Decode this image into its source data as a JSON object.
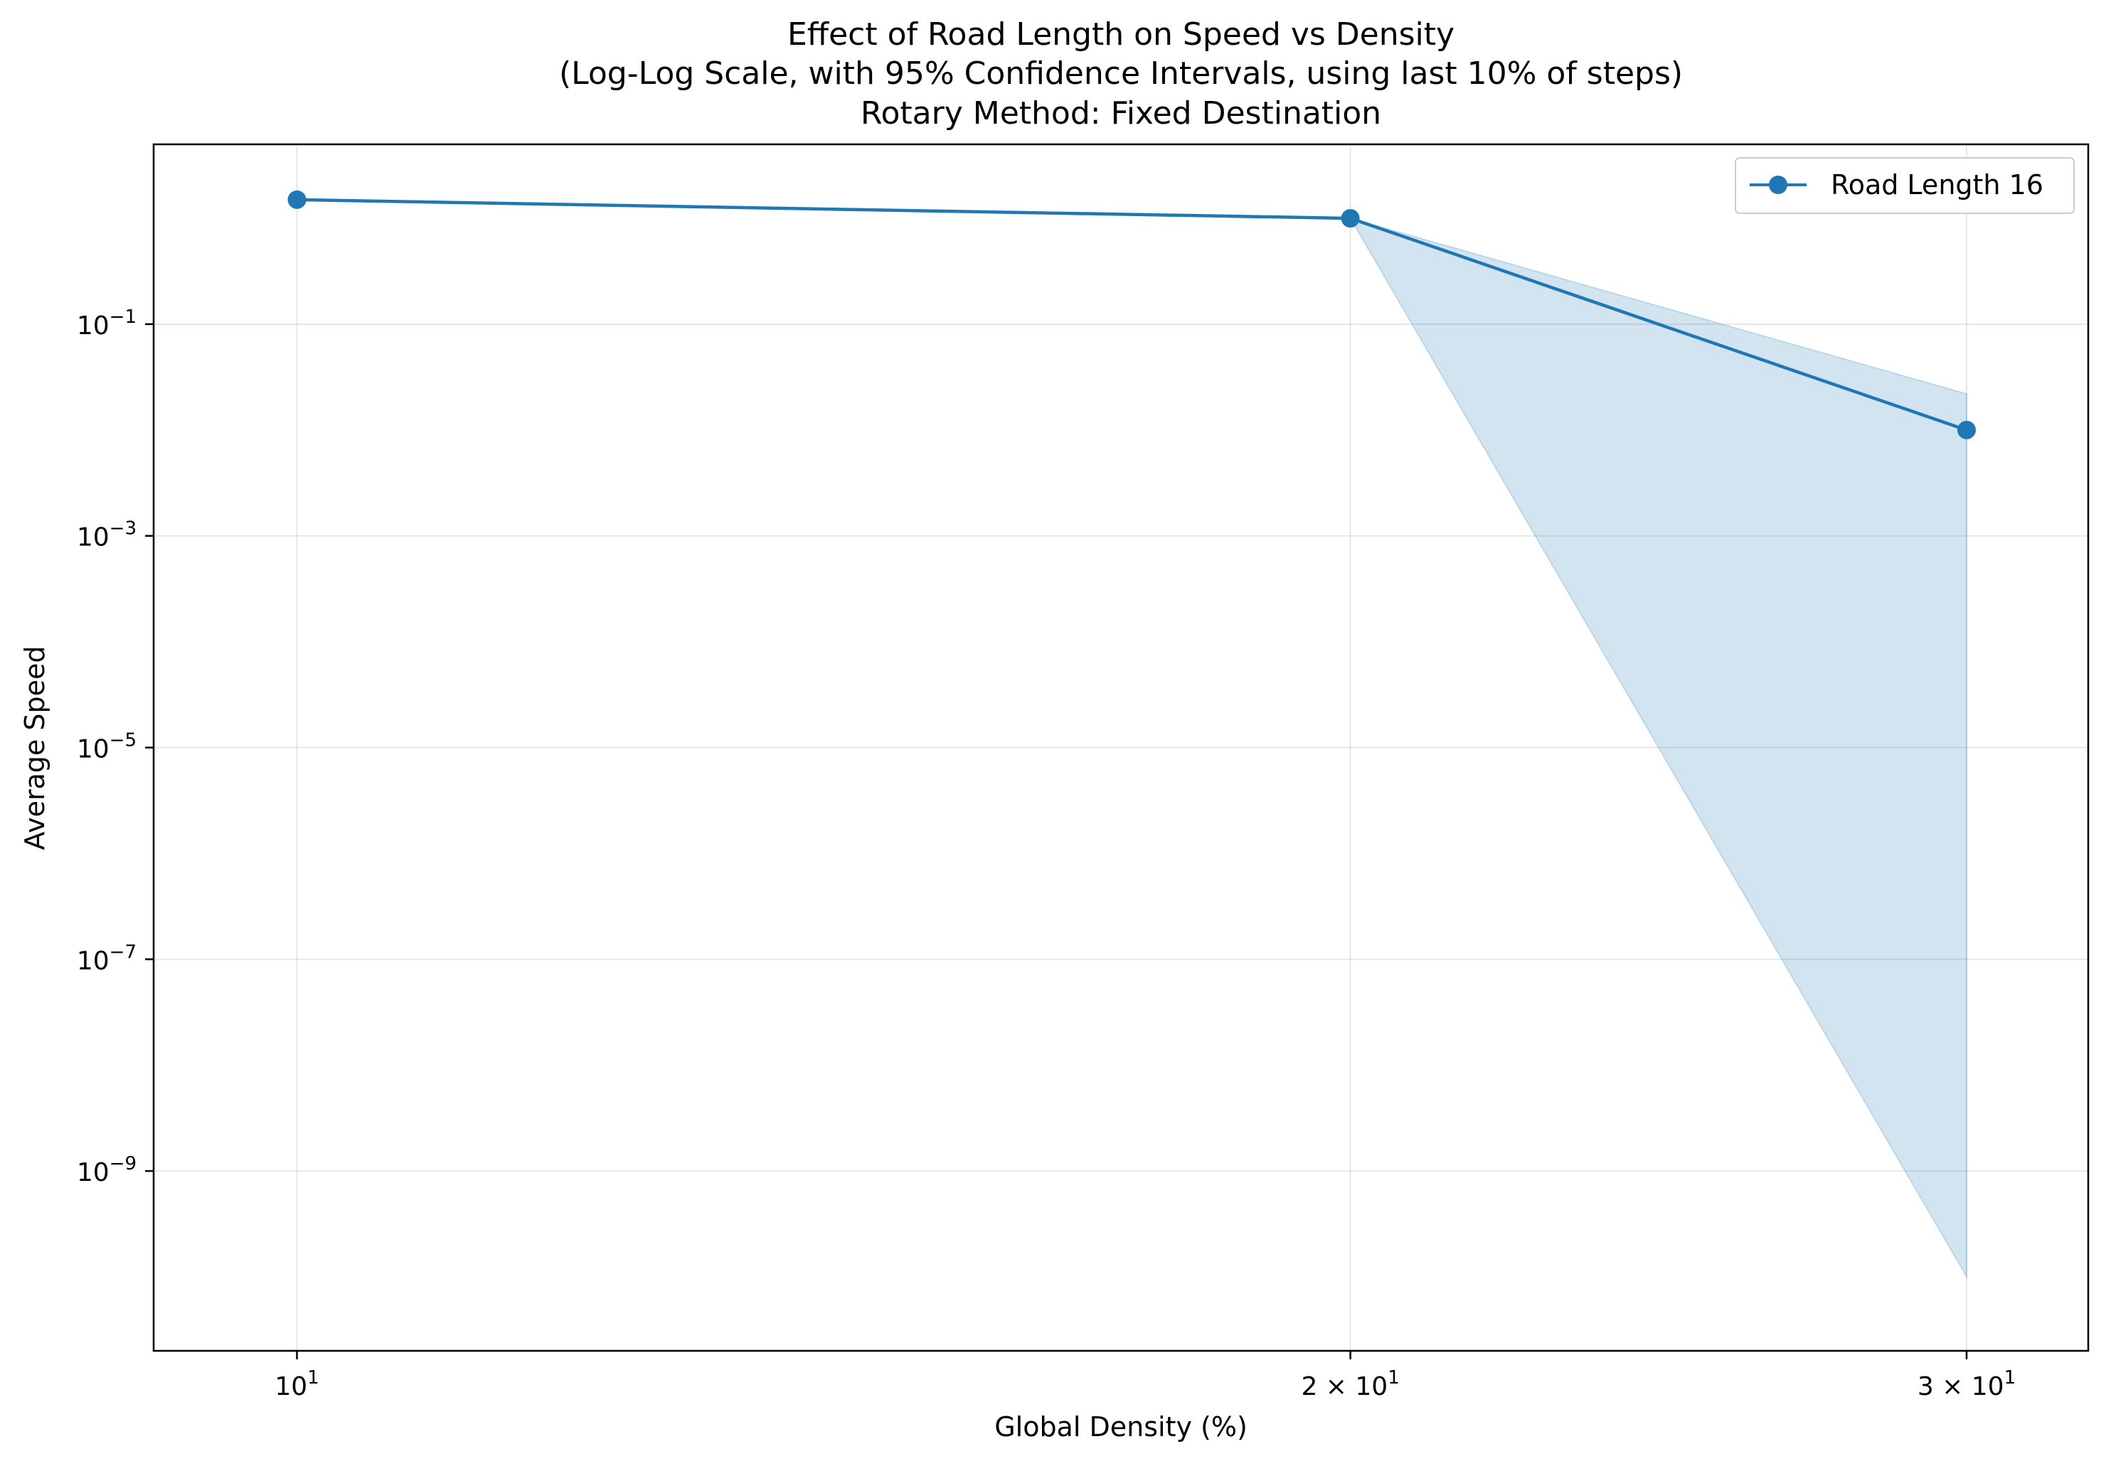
{
  "chart_data": {
    "type": "line",
    "title_lines": [
      "Effect of Road Length on Speed vs Density",
      "(Log-Log Scale, with 95% Confidence Intervals, using last 10% of steps)",
      "Rotary Method: Fixed Destination"
    ],
    "xlabel": "Global Density (%)",
    "ylabel": "Average Speed",
    "x_scale": "log",
    "y_scale": "log",
    "xlim": [
      9.1,
      32.5
    ],
    "ylim": [
      2e-11,
      5
    ],
    "x_ticks": [
      {
        "value": 10,
        "base": "10",
        "exp": "1"
      },
      {
        "value": 20,
        "base": "2 × 10",
        "exp": "1"
      },
      {
        "value": 30,
        "base": "3 × 10",
        "exp": "1"
      }
    ],
    "y_ticks": [
      {
        "value": 0.1,
        "base": "10",
        "exp": "−1"
      },
      {
        "value": 0.001,
        "base": "10",
        "exp": "−3"
      },
      {
        "value": 1e-05,
        "base": "10",
        "exp": "−5"
      },
      {
        "value": 1e-07,
        "base": "10",
        "exp": "−7"
      },
      {
        "value": 1e-09,
        "base": "10",
        "exp": "−9"
      }
    ],
    "grid": true,
    "legend_position": "top-right",
    "series": [
      {
        "name": "Road Length 16",
        "color": "#1f77b4",
        "x": [
          10,
          20,
          30
        ],
        "y": [
          1.5,
          1.0,
          0.01
        ],
        "ci_lower": [
          1.5,
          1.0,
          1e-10
        ],
        "ci_upper": [
          1.5,
          1.0,
          0.022
        ]
      }
    ]
  }
}
